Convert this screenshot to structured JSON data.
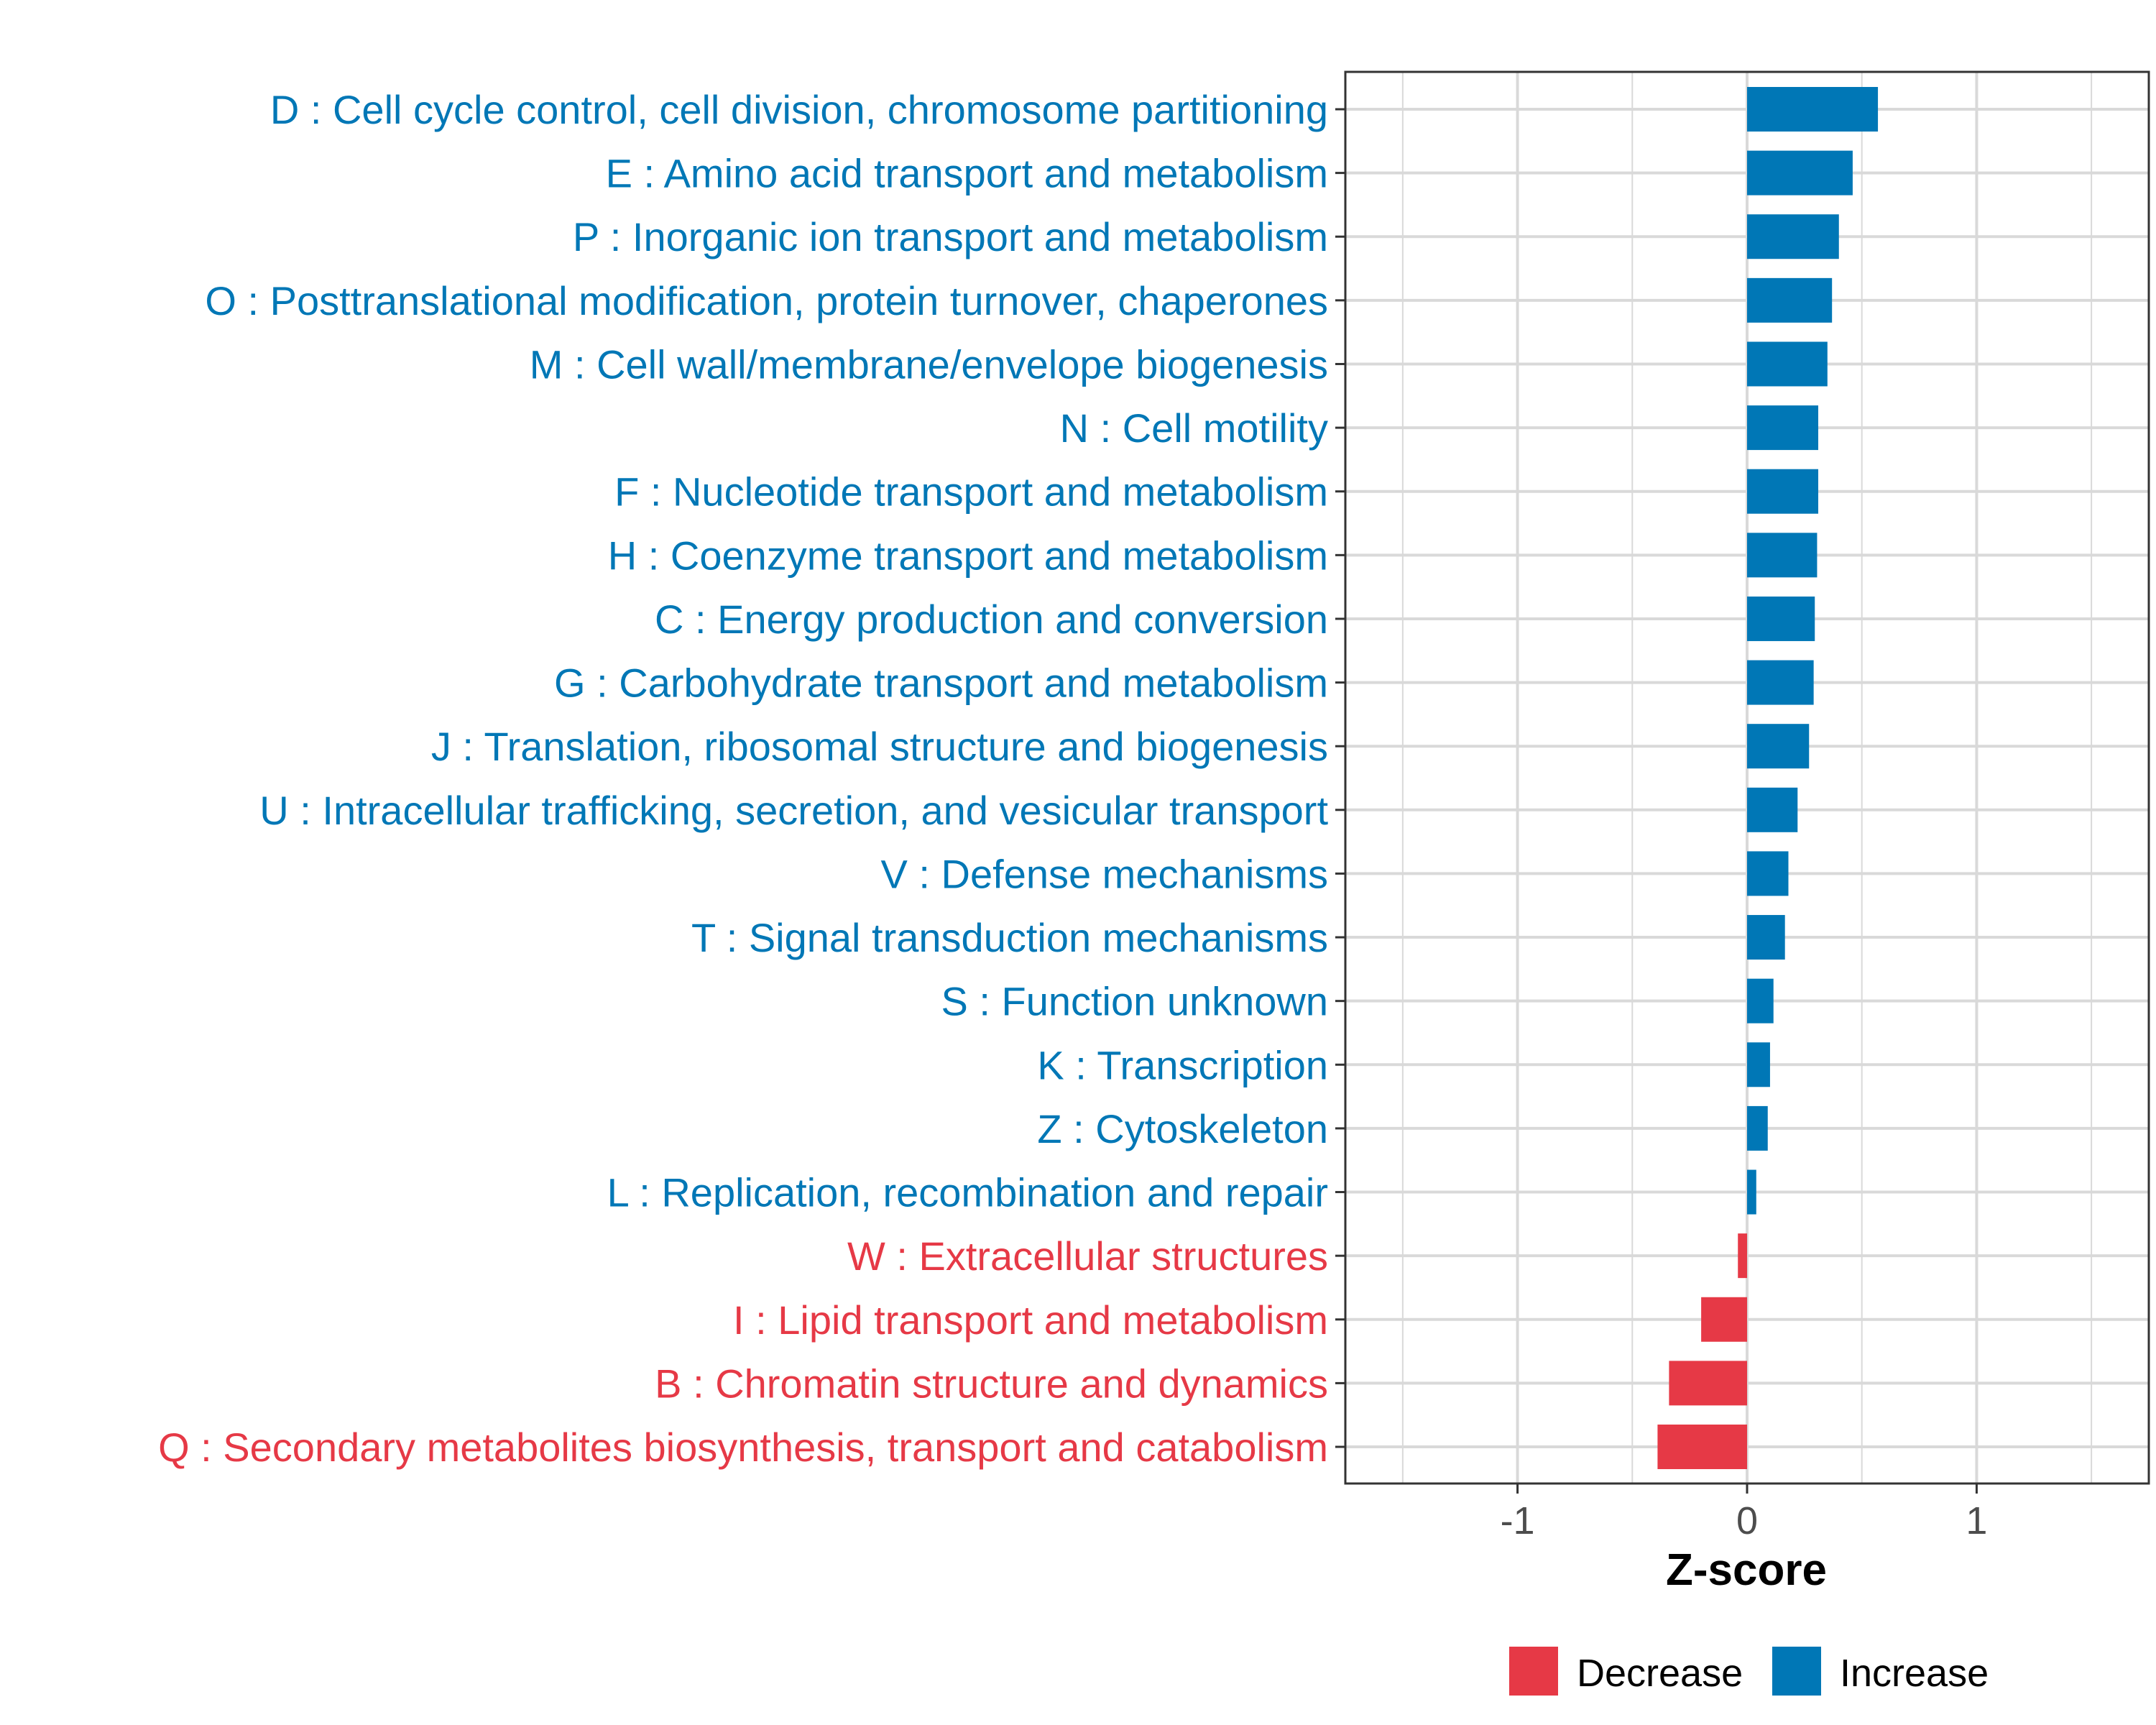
{
  "colors": {
    "increase": "#0077B6",
    "decrease": "#E63946",
    "grid": "#D9D9D9",
    "axis_text": "#4D4D4D",
    "frame": "#333333"
  },
  "chart_data": {
    "type": "bar",
    "orientation": "horizontal",
    "xlabel": "Z-score",
    "xlim": [
      -1.75,
      1.75
    ],
    "xticks": [
      -1,
      0,
      1
    ],
    "xtick_labels": [
      "-1",
      "0",
      "1"
    ],
    "grid": true,
    "legend_position": "bottom",
    "legend": [
      {
        "label": "Decrease",
        "key": "decrease"
      },
      {
        "label": "Increase",
        "key": "increase"
      }
    ],
    "categories": [
      "D : Cell cycle control, cell division, chromosome partitioning",
      "E : Amino acid transport and metabolism",
      "P : Inorganic ion transport and metabolism",
      "O : Posttranslational modification, protein turnover, chaperones",
      "M : Cell wall/membrane/envelope biogenesis",
      "N : Cell motility",
      "F : Nucleotide transport and metabolism",
      "H : Coenzyme transport and metabolism",
      "C : Energy production and conversion",
      "G : Carbohydrate transport and metabolism",
      "J : Translation, ribosomal structure and biogenesis",
      "U : Intracellular trafficking, secretion, and vesicular transport",
      "V : Defense mechanisms",
      "T : Signal transduction mechanisms",
      "S : Function unknown",
      "K : Transcription",
      "Z : Cytoskeleton",
      "L : Replication, recombination and repair",
      "W : Extracellular structures",
      "I : Lipid transport and metabolism",
      "B : Chromatin structure and dynamics",
      "Q : Secondary metabolites biosynthesis, transport and catabolism"
    ],
    "values": [
      0.57,
      0.46,
      0.4,
      0.37,
      0.35,
      0.31,
      0.31,
      0.305,
      0.295,
      0.29,
      0.27,
      0.22,
      0.18,
      0.165,
      0.115,
      0.1,
      0.09,
      0.04,
      -0.04,
      -0.2,
      -0.34,
      -0.39
    ],
    "groups": [
      "increase",
      "increase",
      "increase",
      "increase",
      "increase",
      "increase",
      "increase",
      "increase",
      "increase",
      "increase",
      "increase",
      "increase",
      "increase",
      "increase",
      "increase",
      "increase",
      "increase",
      "increase",
      "decrease",
      "decrease",
      "decrease",
      "decrease"
    ]
  }
}
